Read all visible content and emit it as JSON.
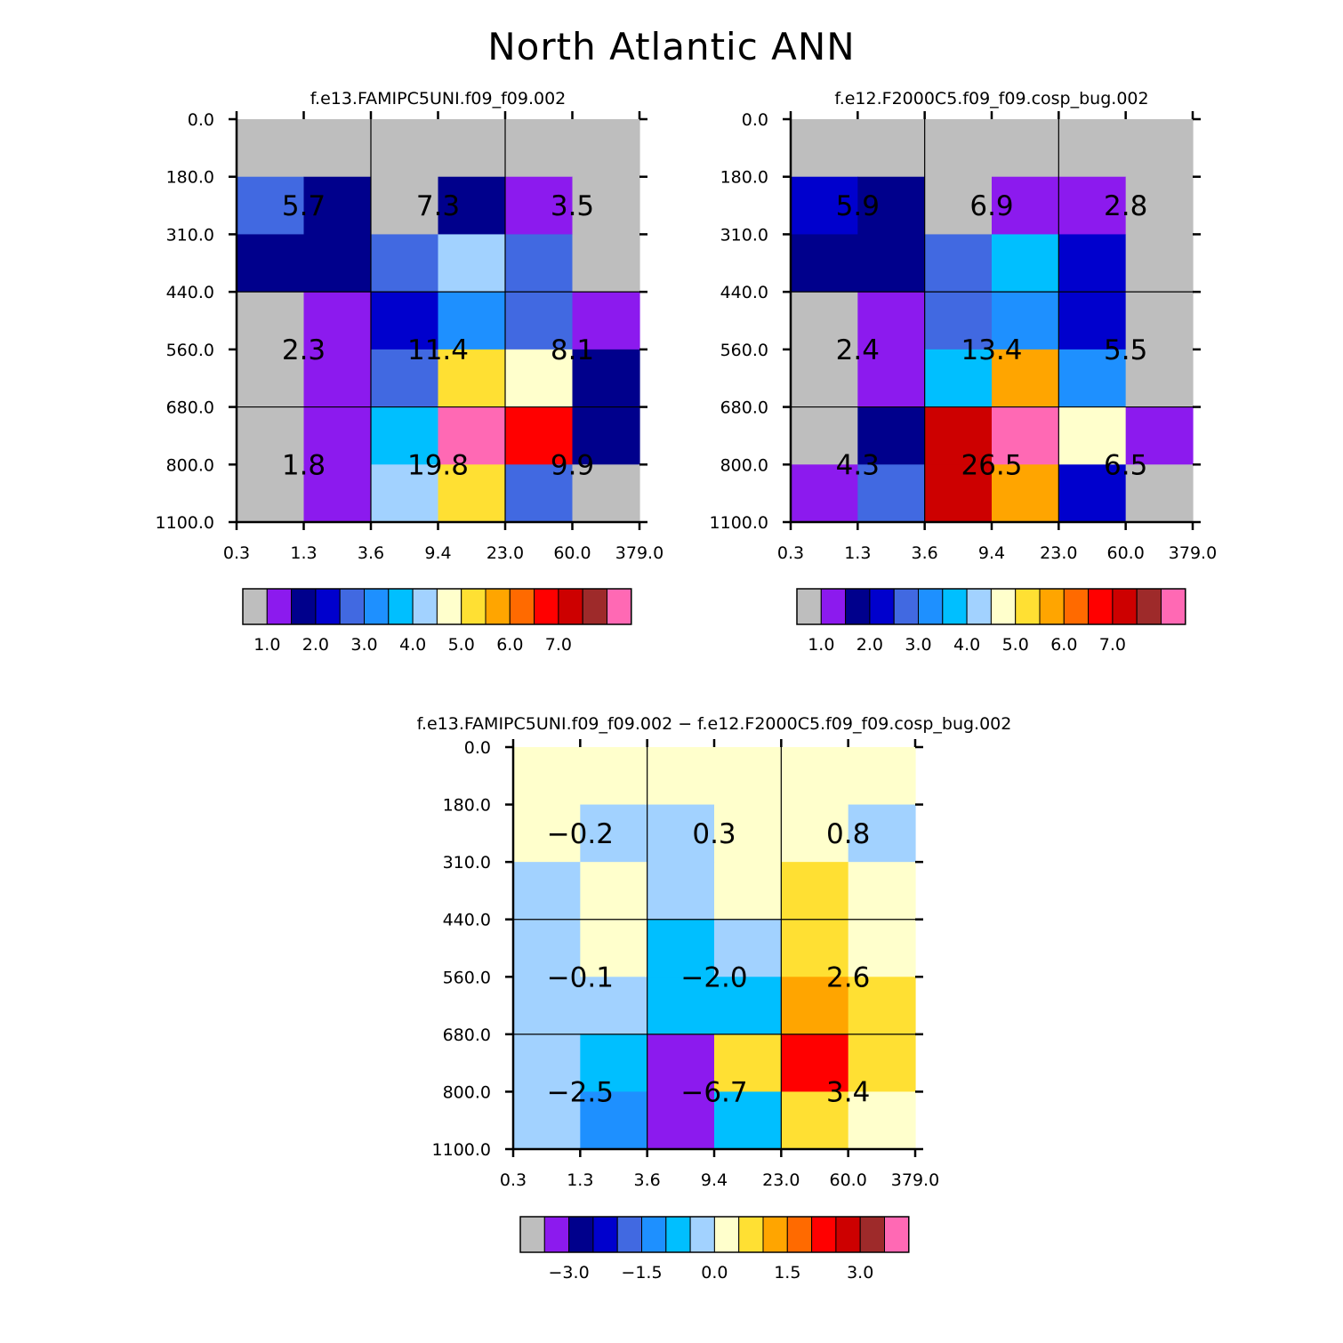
{
  "figure_title": "North Atlantic ANN",
  "palette": [
    "#bebebe",
    "#8c1aee",
    "#00008c",
    "#0000cd",
    "#4169e1",
    "#1e90ff",
    "#00bfff",
    "#a2d2ff",
    "#ffffcc",
    "#ffe033",
    "#ffa500",
    "#ff6a00",
    "#ff0000",
    "#cd0000",
    "#9e2a2a",
    "#ff69b4"
  ],
  "chart_data": [
    {
      "type": "heatmap",
      "title": "f.e13.FAMIPC5UNI.f09_f09.002",
      "x_ticks": [
        "0.3",
        "1.3",
        "3.6",
        "9.4",
        "23.0",
        "60.0",
        "379.0"
      ],
      "y_ticks": [
        "0.0",
        "180.0",
        "310.0",
        "440.0",
        "560.0",
        "680.0",
        "800.0",
        "1100.0"
      ],
      "cells": [
        [
          0,
          0,
          0,
          0,
          0,
          0
        ],
        [
          4,
          2,
          0,
          2,
          1,
          0
        ],
        [
          2,
          2,
          4,
          7,
          4,
          0
        ],
        [
          0,
          1,
          3,
          5,
          4,
          1
        ],
        [
          0,
          1,
          4,
          9,
          8,
          2
        ],
        [
          0,
          1,
          6,
          15,
          12,
          2
        ],
        [
          0,
          1,
          7,
          9,
          4,
          0
        ]
      ],
      "group_labels": [
        [
          "5.7",
          "7.3",
          "3.5"
        ],
        [
          "2.3",
          "11.4",
          "8.1"
        ],
        [
          "1.8",
          "19.8",
          "9.9"
        ]
      ],
      "colorbar": {
        "labels": [
          "1.0",
          "2.0",
          "3.0",
          "4.0",
          "5.0",
          "6.0",
          "7.0"
        ],
        "levels": [
          1.0,
          1.5,
          2.0,
          2.5,
          3.0,
          3.5,
          4.0,
          4.5,
          5.0,
          5.5,
          6.0,
          6.5,
          7.0,
          7.5
        ]
      }
    },
    {
      "type": "heatmap",
      "title": "f.e12.F2000C5.f09_f09.cosp_bug.002",
      "x_ticks": [
        "0.3",
        "1.3",
        "3.6",
        "9.4",
        "23.0",
        "60.0",
        "379.0"
      ],
      "y_ticks": [
        "0.0",
        "180.0",
        "310.0",
        "440.0",
        "560.0",
        "680.0",
        "800.0",
        "1100.0"
      ],
      "cells": [
        [
          0,
          0,
          0,
          0,
          0,
          0
        ],
        [
          3,
          2,
          0,
          1,
          1,
          0
        ],
        [
          2,
          2,
          4,
          6,
          3,
          0
        ],
        [
          0,
          1,
          4,
          5,
          3,
          0
        ],
        [
          0,
          1,
          6,
          10,
          5,
          0
        ],
        [
          0,
          2,
          13,
          15,
          8,
          1
        ],
        [
          1,
          4,
          13,
          10,
          3,
          0
        ]
      ],
      "group_labels": [
        [
          "5.9",
          "6.9",
          "2.8"
        ],
        [
          "2.4",
          "13.4",
          "5.5"
        ],
        [
          "4.3",
          "26.5",
          "6.5"
        ]
      ],
      "colorbar": {
        "labels": [
          "1.0",
          "2.0",
          "3.0",
          "4.0",
          "5.0",
          "6.0",
          "7.0"
        ],
        "levels": [
          1.0,
          1.5,
          2.0,
          2.5,
          3.0,
          3.5,
          4.0,
          4.5,
          5.0,
          5.5,
          6.0,
          6.5,
          7.0,
          7.5
        ]
      }
    },
    {
      "type": "heatmap",
      "title": "f.e13.FAMIPC5UNI.f09_f09.002 − f.e12.F2000C5.f09_f09.cosp_bug.002",
      "x_ticks": [
        "0.3",
        "1.3",
        "3.6",
        "9.4",
        "23.0",
        "60.0",
        "379.0"
      ],
      "y_ticks": [
        "0.0",
        "180.0",
        "310.0",
        "440.0",
        "560.0",
        "680.0",
        "800.0",
        "1100.0"
      ],
      "cells": [
        [
          8,
          8,
          8,
          8,
          8,
          8
        ],
        [
          8,
          7,
          7,
          8,
          8,
          7
        ],
        [
          7,
          8,
          7,
          8,
          9,
          8
        ],
        [
          7,
          8,
          6,
          7,
          9,
          8
        ],
        [
          7,
          7,
          6,
          6,
          10,
          9
        ],
        [
          7,
          6,
          1,
          9,
          12,
          9
        ],
        [
          7,
          5,
          1,
          6,
          9,
          8
        ]
      ],
      "group_labels": [
        [
          "−0.2",
          "0.3",
          "0.8"
        ],
        [
          "−0.1",
          "−2.0",
          "2.6"
        ],
        [
          "−2.5",
          "−6.7",
          "3.4"
        ]
      ],
      "colorbar": {
        "labels": [
          "−3.0",
          "−1.5",
          "0.0",
          "1.5",
          "3.0"
        ],
        "levels": [
          -3.5,
          -3.0,
          -2.5,
          -2.0,
          -1.5,
          -1.0,
          -0.5,
          0.0,
          0.5,
          1.0,
          1.5,
          2.0,
          2.5,
          3.0
        ]
      }
    }
  ]
}
